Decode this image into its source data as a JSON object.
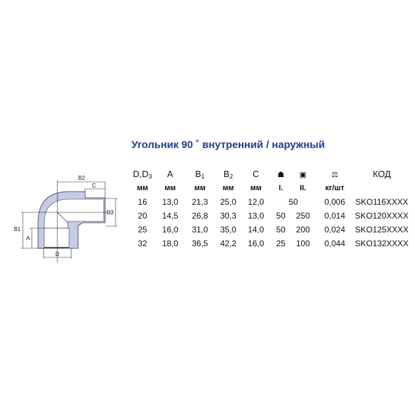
{
  "title": "Угольник 90 ˚ внутренний / наружный",
  "diagram_labels": {
    "b2": "B2",
    "c": "C",
    "d3": "D3",
    "b1": "B1",
    "a": "A",
    "d": "D"
  },
  "columns": [
    {
      "main": "D,D",
      "sub": "3",
      "unit": "мм"
    },
    {
      "main": "A",
      "sub": "",
      "unit": "мм"
    },
    {
      "main": "B",
      "sub": "1",
      "unit": "мм"
    },
    {
      "main": "B",
      "sub": "2",
      "unit": "мм"
    },
    {
      "main": "C",
      "sub": "",
      "unit": "мм"
    },
    {
      "icon": "package-icon",
      "unit": "I."
    },
    {
      "icon": "box-icon",
      "unit": "II."
    },
    {
      "icon": "scales-icon",
      "unit": "кг/шт"
    },
    {
      "main": "КОД",
      "sub": "",
      "unit": ""
    }
  ],
  "rows": [
    [
      "16",
      "13,0",
      "21,3",
      "25,0",
      "12,0",
      "50",
      "",
      "0,006",
      "SKO116XXXX"
    ],
    [
      "20",
      "14,5",
      "26,8",
      "30,3",
      "13,0",
      "50",
      "250",
      "0,014",
      "SKO120XXXX"
    ],
    [
      "25",
      "16,0",
      "31,0",
      "35,0",
      "14,0",
      "50",
      "200",
      "0,024",
      "SKO125XXXX"
    ],
    [
      "32",
      "18,0",
      "36,5",
      "42,2",
      "16,0",
      "25",
      "100",
      "0,044",
      "SKO132XXXX"
    ]
  ],
  "colors": {
    "title": "#1f3f8f",
    "fitting": "#c5cce8"
  }
}
